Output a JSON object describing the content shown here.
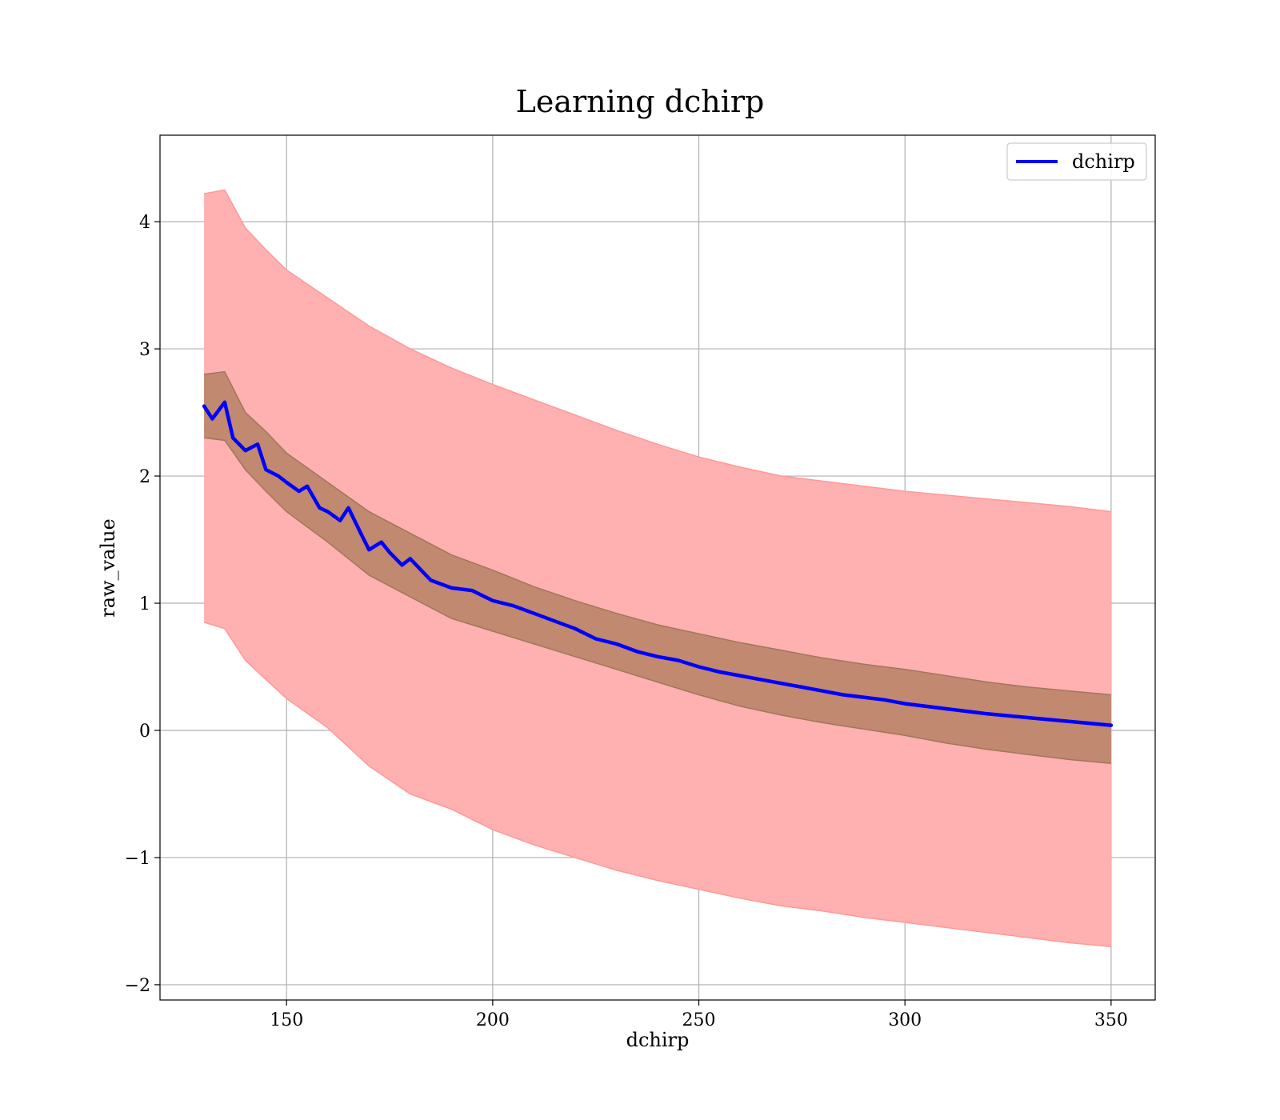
{
  "chart_data": {
    "type": "line",
    "title": "Learning dchirp",
    "xlabel": "dchirp",
    "ylabel": "raw_value",
    "xlim": [
      119.3,
      360.7
    ],
    "ylim": [
      -2.12,
      4.68
    ],
    "x_ticks": [
      150,
      200,
      250,
      300,
      350
    ],
    "y_ticks": [
      -2,
      -1,
      0,
      1,
      2,
      3,
      4
    ],
    "x_tick_labels": [
      "150",
      "200",
      "250",
      "300",
      "350"
    ],
    "y_tick_labels": [
      "−2",
      "−1",
      "0",
      "1",
      "2",
      "3",
      "4"
    ],
    "grid": true,
    "legend": {
      "placement": "top-right",
      "entries": [
        "dchirp"
      ]
    },
    "series": [
      {
        "name": "dchirp",
        "color": "#0000ff",
        "x": [
          130,
          132,
          135,
          137,
          140,
          143,
          145,
          148,
          150,
          153,
          155,
          158,
          160,
          163,
          165,
          168,
          170,
          173,
          175,
          178,
          180,
          185,
          190,
          195,
          200,
          205,
          210,
          215,
          220,
          225,
          230,
          235,
          240,
          245,
          250,
          255,
          260,
          265,
          270,
          275,
          280,
          285,
          290,
          295,
          300,
          310,
          320,
          330,
          340,
          350
        ],
        "y": [
          2.55,
          2.45,
          2.58,
          2.3,
          2.2,
          2.25,
          2.05,
          2.0,
          1.95,
          1.88,
          1.92,
          1.75,
          1.72,
          1.65,
          1.75,
          1.55,
          1.42,
          1.48,
          1.4,
          1.3,
          1.35,
          1.18,
          1.12,
          1.1,
          1.02,
          0.98,
          0.92,
          0.86,
          0.8,
          0.72,
          0.68,
          0.62,
          0.58,
          0.55,
          0.5,
          0.46,
          0.43,
          0.4,
          0.37,
          0.34,
          0.31,
          0.28,
          0.26,
          0.24,
          0.21,
          0.17,
          0.13,
          0.1,
          0.07,
          0.04
        ]
      }
    ],
    "bands": [
      {
        "role": "outer-band",
        "color": "#ff9999",
        "fill_color": "#ffb0b0",
        "x": [
          130,
          135,
          140,
          145,
          150,
          160,
          170,
          180,
          190,
          200,
          210,
          220,
          230,
          240,
          250,
          260,
          270,
          280,
          290,
          300,
          310,
          320,
          330,
          340,
          350
        ],
        "upper": [
          4.22,
          4.25,
          3.95,
          3.78,
          3.62,
          3.4,
          3.18,
          3.0,
          2.85,
          2.72,
          2.6,
          2.48,
          2.36,
          2.25,
          2.15,
          2.07,
          2.0,
          1.96,
          1.92,
          1.88,
          1.85,
          1.82,
          1.79,
          1.76,
          1.72
        ],
        "lower": [
          0.85,
          0.8,
          0.55,
          0.4,
          0.25,
          0.02,
          -0.28,
          -0.5,
          -0.62,
          -0.78,
          -0.9,
          -1.0,
          -1.1,
          -1.18,
          -1.25,
          -1.32,
          -1.38,
          -1.42,
          -1.47,
          -1.51,
          -1.55,
          -1.59,
          -1.63,
          -1.67,
          -1.7
        ]
      },
      {
        "role": "inner-band",
        "color": "#a0785a",
        "fill_color": "#b08060",
        "x": [
          130,
          135,
          140,
          145,
          150,
          160,
          170,
          180,
          190,
          200,
          210,
          220,
          230,
          240,
          250,
          260,
          270,
          280,
          290,
          300,
          310,
          320,
          330,
          340,
          350
        ],
        "upper": [
          2.8,
          2.82,
          2.5,
          2.35,
          2.18,
          1.95,
          1.72,
          1.55,
          1.38,
          1.26,
          1.13,
          1.02,
          0.92,
          0.83,
          0.76,
          0.69,
          0.63,
          0.57,
          0.52,
          0.48,
          0.43,
          0.38,
          0.34,
          0.31,
          0.28
        ],
        "lower": [
          2.3,
          2.28,
          2.05,
          1.88,
          1.72,
          1.48,
          1.22,
          1.05,
          0.88,
          0.78,
          0.68,
          0.58,
          0.48,
          0.38,
          0.28,
          0.19,
          0.12,
          0.06,
          0.01,
          -0.04,
          -0.1,
          -0.15,
          -0.19,
          -0.23,
          -0.26
        ]
      }
    ]
  }
}
